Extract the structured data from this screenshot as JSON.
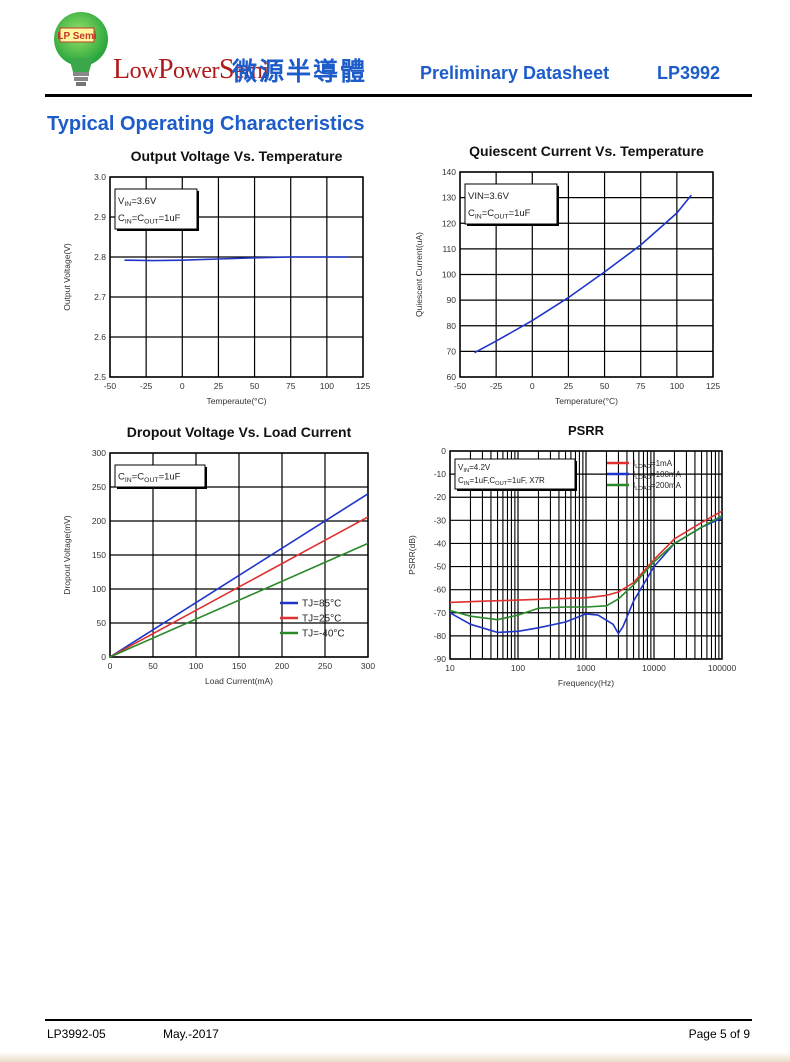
{
  "header": {
    "logo_badge": "LP Semi",
    "logo_text_l": "L",
    "logo_text_1": "ow",
    "logo_text_p": "P",
    "logo_text_2": "ower",
    "logo_text_s": "S",
    "logo_text_3": "emi",
    "logo_cn": "微源半導體",
    "doc_title": "Preliminary Datasheet",
    "part_no": "LP3992"
  },
  "section_title": "Typical Operating Characteristics",
  "colors": {
    "accent": "#1d5cc9",
    "logo_red": "#b01a1a",
    "logo_green": "#22a33a",
    "blue": "#1f35c9",
    "red": "#e03030",
    "green": "#2a8a2a"
  },
  "chart_data": [
    {
      "type": "line",
      "title": "Output Voltage Vs. Temperature",
      "xlabel": "Temperaute(°C)",
      "ylabel": "Output Voltage(V)",
      "xlim": [
        -50,
        125
      ],
      "ylim": [
        2.5,
        3.0
      ],
      "xticks": [
        -50,
        -25,
        0,
        25,
        50,
        75,
        100,
        125
      ],
      "yticks": [
        2.5,
        2.6,
        2.7,
        2.8,
        2.9,
        3.0
      ],
      "x_tick_labels": [
        "-50",
        "-25",
        "0",
        "25",
        "50",
        "75",
        "100",
        "125"
      ],
      "y_tick_labels": [
        "2.5",
        "2.6",
        "2.7",
        "2.8",
        "2.9",
        "3.0"
      ],
      "annotation": [
        {
          "main": "V",
          "sub": "IN",
          "rest": "=3.6V"
        },
        {
          "main": "C",
          "sub": "IN",
          "mid": "=C",
          "sub2": "OUT",
          "rest": "=1uF"
        }
      ],
      "grid": true,
      "series": [
        {
          "color": "#1f35c9",
          "x": [
            -40,
            -20,
            0,
            25,
            50,
            75,
            100,
            115
          ],
          "y": [
            2.792,
            2.791,
            2.792,
            2.795,
            2.798,
            2.8,
            2.8,
            2.8
          ]
        }
      ]
    },
    {
      "type": "line",
      "title": "Quiescent Current Vs. Temperature",
      "xlabel": "Temperature(°C)",
      "ylabel": "Quiescent Current(uA)",
      "xlim": [
        -50,
        125
      ],
      "ylim": [
        60,
        140
      ],
      "xticks": [
        -50,
        -25,
        0,
        25,
        50,
        75,
        100,
        125
      ],
      "yticks": [
        60,
        70,
        80,
        90,
        100,
        110,
        120,
        130,
        140
      ],
      "x_tick_labels": [
        "-50",
        "-25",
        "0",
        "25",
        "50",
        "75",
        "100",
        "125"
      ],
      "y_tick_labels": [
        "60",
        "70",
        "80",
        "90",
        "100",
        "110",
        "120",
        "130",
        "140"
      ],
      "annotation": [
        {
          "main": "VIN=3.6V"
        },
        {
          "main": "C",
          "sub": "IN",
          "mid": "=C",
          "sub2": "OUT",
          "rest": "=1uF"
        }
      ],
      "grid": true,
      "series": [
        {
          "color": "#1f35c9",
          "x": [
            -40,
            -25,
            0,
            25,
            50,
            75,
            100,
            110
          ],
          "y": [
            69.5,
            74,
            82,
            91,
            101,
            111.5,
            124,
            131
          ]
        }
      ]
    },
    {
      "type": "line",
      "title": "Dropout Voltage Vs. Load Current",
      "xlabel": "Load Current(mA)",
      "ylabel": "Dropout Voltage(mV)",
      "xlim": [
        0,
        300
      ],
      "ylim": [
        0,
        300
      ],
      "xticks": [
        0,
        50,
        100,
        150,
        200,
        250,
        300
      ],
      "yticks": [
        0,
        50,
        100,
        150,
        200,
        250,
        300
      ],
      "x_tick_labels": [
        "0",
        "50",
        "100",
        "150",
        "200",
        "250",
        "300"
      ],
      "y_tick_labels": [
        "0",
        "50",
        "100",
        "150",
        "200",
        "250",
        "300"
      ],
      "annotation": [
        {
          "main": "C",
          "sub": "IN",
          "mid": "=C",
          "sub2": "OUT",
          "rest": "=1uF"
        }
      ],
      "legend": "bottom-right",
      "grid": true,
      "series": [
        {
          "name": "TJ=85°C",
          "color": "#1f35c9",
          "x": [
            0,
            300
          ],
          "y": [
            0,
            240
          ]
        },
        {
          "name": "TJ=25°C",
          "color": "#e03030",
          "x": [
            0,
            300
          ],
          "y": [
            0,
            206
          ]
        },
        {
          "name": "TJ=-40°C",
          "color": "#2a8a2a",
          "x": [
            0,
            300
          ],
          "y": [
            0,
            167
          ]
        }
      ]
    },
    {
      "type": "line",
      "title": "PSRR",
      "xlabel": "Frequency(Hz)",
      "ylabel": "PSRR(dB)",
      "xscale": "log",
      "xlim": [
        10,
        100000
      ],
      "ylim": [
        -90,
        0
      ],
      "xticks": [
        10,
        100,
        1000,
        10000,
        100000
      ],
      "yticks": [
        0,
        -10,
        -20,
        -30,
        -40,
        -50,
        -60,
        -70,
        -80,
        -90
      ],
      "x_tick_labels": [
        "10",
        "100",
        "1000",
        "10000",
        "100000"
      ],
      "y_tick_labels": [
        "0",
        "-10",
        "-20",
        "-30",
        "-40",
        "-50",
        "-60",
        "-70",
        "-80",
        "-90"
      ],
      "annotation": [
        {
          "main": "V",
          "sub": "IN",
          "rest": "=4.2V"
        },
        {
          "main": "C",
          "sub": "IN",
          "mid": "=1uF,C",
          "sub2": "OUT",
          "rest": "=1uF, X7R"
        }
      ],
      "legend": "top-right",
      "grid": true,
      "series": [
        {
          "name_main": "I",
          "name_sub": "LOAD",
          "name_rest": "=1mA",
          "color": "#e03030",
          "x": [
            10,
            30,
            100,
            300,
            1000,
            2000,
            3000,
            5000,
            10000,
            20000,
            50000,
            100000
          ],
          "y": [
            -65.5,
            -65,
            -64.5,
            -64,
            -63.5,
            -62.5,
            -61,
            -57,
            -47,
            -38,
            -31,
            -26
          ]
        },
        {
          "name_main": "I",
          "name_sub": "LOAD",
          "name_rest": "=100mA",
          "color": "#1f35c9",
          "x": [
            10,
            20,
            50,
            100,
            200,
            500,
            1000,
            1500,
            2500,
            3000,
            3500,
            5000,
            10000,
            20000,
            50000,
            100000
          ],
          "y": [
            -70,
            -75,
            -78.5,
            -78,
            -76.5,
            -74,
            -70.5,
            -71,
            -75,
            -79,
            -76,
            -65,
            -50,
            -40,
            -33,
            -29
          ]
        },
        {
          "name_main": "I",
          "name_sub": "LOAD",
          "name_rest": "=200mA",
          "color": "#2a8a2a",
          "x": [
            10,
            20,
            50,
            100,
            200,
            500,
            1000,
            2000,
            3000,
            5000,
            10000,
            20000,
            50000,
            100000
          ],
          "y": [
            -69,
            -71.5,
            -73,
            -71,
            -68,
            -67.5,
            -67.5,
            -67,
            -64,
            -58,
            -48,
            -40,
            -33,
            -28
          ]
        }
      ]
    }
  ],
  "footer": {
    "left": "LP3992-05",
    "date": "May.-2017",
    "page": "Page 5 of 9"
  }
}
